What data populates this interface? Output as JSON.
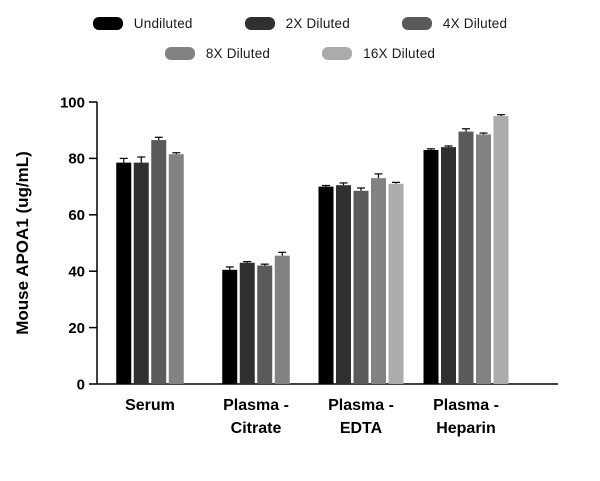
{
  "chart_data": {
    "type": "bar",
    "title": "",
    "ylabel": "Mouse  APOA1 (ug/mL)",
    "xlabel": "",
    "ylim": [
      0,
      100
    ],
    "yticks": [
      0,
      20,
      40,
      60,
      80,
      100
    ],
    "grid": false,
    "legend_position": "top",
    "legend_rows": [
      [
        0,
        1,
        2
      ],
      [
        3,
        4
      ]
    ],
    "categories": [
      [
        "Serum"
      ],
      [
        "Plasma -",
        "Citrate"
      ],
      [
        "Plasma -",
        "EDTA"
      ],
      [
        "Plasma -",
        "Heparin"
      ]
    ],
    "series": [
      {
        "name": "Undiluted",
        "color": "#000000",
        "values": [
          78.5,
          40.5,
          70.0,
          83.0
        ],
        "errors": [
          1.5,
          1.0,
          0.4,
          0.4
        ]
      },
      {
        "name": "2X Diluted",
        "color": "#303030",
        "values": [
          78.5,
          43.0,
          70.5,
          84.0
        ],
        "errors": [
          2.0,
          0.4,
          0.8,
          0.4
        ]
      },
      {
        "name": "4X Diluted",
        "color": "#5a5a5a",
        "values": [
          86.5,
          42.0,
          68.5,
          89.5
        ],
        "errors": [
          1.0,
          0.5,
          1.0,
          1.0
        ]
      },
      {
        "name": "8X Diluted",
        "color": "#828282",
        "values": [
          81.5,
          45.5,
          73.0,
          88.5
        ],
        "errors": [
          0.5,
          1.2,
          1.5,
          0.5
        ]
      },
      {
        "name": "16X Diluted",
        "color": "#ababab",
        "values": [
          null,
          null,
          71.0,
          95.0
        ],
        "errors": [
          null,
          null,
          0.5,
          0.5
        ]
      }
    ]
  }
}
